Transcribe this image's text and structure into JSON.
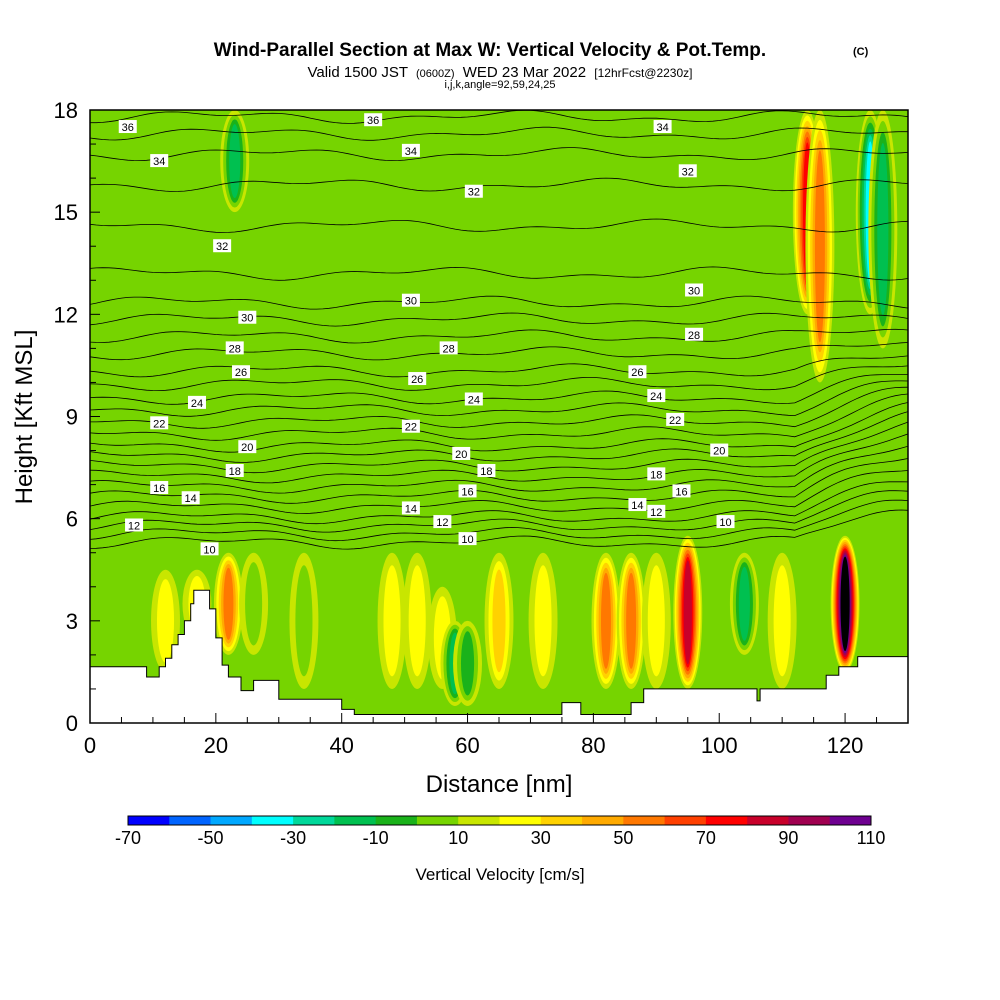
{
  "chart_data": {
    "type": "heatmap",
    "title": "Wind-Parallel Section at Max W: Vertical Velocity & Pot.Temp.",
    "title_mark": "(C)",
    "subtitle_parts": {
      "valid": "Valid 1500 JST",
      "utc": "(0600Z)",
      "date": "WED 23 Mar 2022",
      "fcst": "[12hrFcst@2230z]"
    },
    "subtitle2": "i,j,k,angle=92,59,24,25",
    "xlabel": "Distance [nm]",
    "ylabel": "Height [Kft MSL]",
    "xlim": [
      0,
      130
    ],
    "ylim": [
      0,
      18
    ],
    "xticks": [
      "0",
      "20",
      "40",
      "60",
      "80",
      "100",
      "120"
    ],
    "yticks": [
      "0",
      "3",
      "6",
      "9",
      "12",
      "15",
      "18"
    ],
    "colorbar": {
      "label": "Vertical Velocity [cm/s]",
      "tick_labels": [
        "-70",
        "-50",
        "-30",
        "-10",
        "10",
        "30",
        "50",
        "70",
        "90",
        "110"
      ],
      "colors": [
        "#0000ff",
        "#0064ff",
        "#00a8ff",
        "#00ffff",
        "#00d89a",
        "#00c050",
        "#1ab21a",
        "#76d400",
        "#c8e600",
        "#ffff00",
        "#ffd200",
        "#ffaa00",
        "#ff7800",
        "#ff4000",
        "#ff0000",
        "#c8002a",
        "#a00050",
        "#6e0090"
      ]
    },
    "velocity_columns": [
      {
        "x": 12,
        "h0": 1.5,
        "h1": 4.5,
        "w": 11
      },
      {
        "x": 17,
        "h0": 2.5,
        "h1": 4.5,
        "w": 11
      },
      {
        "x": 22,
        "h0": 2,
        "h1": 5,
        "w": 43
      },
      {
        "x": 26,
        "h0": 2,
        "h1": 5,
        "w": -6
      },
      {
        "x": 34,
        "h0": 1,
        "h1": 5,
        "w": -10
      },
      {
        "x": 48,
        "h0": 1,
        "h1": 5,
        "w": 9
      },
      {
        "x": 52,
        "h0": 1,
        "h1": 5,
        "w": 12
      },
      {
        "x": 56,
        "h0": 1,
        "h1": 4,
        "w": 16
      },
      {
        "x": 58,
        "h0": 0.5,
        "h1": 3,
        "w": -25
      },
      {
        "x": 60,
        "h0": 0.5,
        "h1": 3,
        "w": -18
      },
      {
        "x": 65,
        "h0": 1,
        "h1": 5,
        "w": 20
      },
      {
        "x": 72,
        "h0": 1,
        "h1": 5,
        "w": 18
      },
      {
        "x": 82,
        "h0": 1,
        "h1": 5,
        "w": 48
      },
      {
        "x": 86,
        "h0": 1,
        "h1": 5,
        "w": 46
      },
      {
        "x": 90,
        "h0": 1,
        "h1": 5,
        "w": 18
      },
      {
        "x": 95,
        "h0": 1,
        "h1": 5.5,
        "w": 78
      },
      {
        "x": 104,
        "h0": 2,
        "h1": 5,
        "w": -25
      },
      {
        "x": 110,
        "h0": 1,
        "h1": 5,
        "w": 18
      },
      {
        "x": 120,
        "h0": 1.5,
        "h1": 5.5,
        "w": 110
      },
      {
        "x": 23,
        "h0": 15,
        "h1": 18,
        "w": -22
      },
      {
        "x": 114,
        "h0": 12,
        "h1": 18,
        "w": 60
      },
      {
        "x": 116,
        "h0": 10,
        "h1": 18,
        "w": 40
      },
      {
        "x": 124,
        "h0": 12,
        "h1": 18,
        "w": -45
      },
      {
        "x": 126,
        "h0": 11,
        "h1": 18,
        "w": -28
      }
    ],
    "terrain": [
      [
        0,
        1.65
      ],
      [
        9,
        1.65
      ],
      [
        9,
        1.35
      ],
      [
        11,
        1.35
      ],
      [
        11,
        1.65
      ],
      [
        12,
        1.65
      ],
      [
        12,
        1.9
      ],
      [
        13,
        1.9
      ],
      [
        13,
        2.3
      ],
      [
        14,
        2.3
      ],
      [
        14,
        2.6
      ],
      [
        15,
        2.6
      ],
      [
        15,
        3.0
      ],
      [
        16,
        3.0
      ],
      [
        16,
        3.5
      ],
      [
        16.5,
        3.5
      ],
      [
        16.5,
        3.9
      ],
      [
        19,
        3.9
      ],
      [
        19,
        3.35
      ],
      [
        20,
        3.35
      ],
      [
        20,
        2.5
      ],
      [
        21,
        2.5
      ],
      [
        21,
        1.7
      ],
      [
        22,
        1.7
      ],
      [
        22,
        1.35
      ],
      [
        24,
        1.35
      ],
      [
        24,
        0.95
      ],
      [
        26,
        0.95
      ],
      [
        26,
        1.25
      ],
      [
        30,
        1.25
      ],
      [
        30,
        0.7
      ],
      [
        40,
        0.7
      ],
      [
        40,
        0.4
      ],
      [
        42,
        0.4
      ],
      [
        42,
        0.25
      ],
      [
        75,
        0.25
      ],
      [
        75,
        0.6
      ],
      [
        78,
        0.6
      ],
      [
        78,
        0.25
      ],
      [
        86,
        0.25
      ],
      [
        86,
        0.6
      ],
      [
        88,
        0.6
      ],
      [
        88,
        1.0
      ],
      [
        106,
        1.0
      ],
      [
        106,
        0.65
      ],
      [
        106.5,
        0.65
      ],
      [
        106.5,
        1.0
      ],
      [
        117,
        1.0
      ],
      [
        117,
        1.4
      ],
      [
        119,
        1.4
      ],
      [
        119,
        1.65
      ],
      [
        122,
        1.65
      ],
      [
        122,
        1.95
      ],
      [
        130,
        1.95
      ],
      [
        130,
        0
      ],
      [
        0,
        0
      ]
    ],
    "theta_isentropes": [
      {
        "theta": 10,
        "h": 5.3
      },
      {
        "theta": 11,
        "h": 5.55
      },
      {
        "theta": 12,
        "h": 5.8
      },
      {
        "theta": 13,
        "h": 6.05
      },
      {
        "theta": 14,
        "h": 6.35
      },
      {
        "theta": 15,
        "h": 6.65
      },
      {
        "theta": 16,
        "h": 6.95
      },
      {
        "theta": 17,
        "h": 7.25
      },
      {
        "theta": 18,
        "h": 7.55
      },
      {
        "theta": 19,
        "h": 7.85
      },
      {
        "theta": 20,
        "h": 8.15
      },
      {
        "theta": 21,
        "h": 8.5
      },
      {
        "theta": 22,
        "h": 8.85
      },
      {
        "theta": 23,
        "h": 9.2
      },
      {
        "theta": 24,
        "h": 9.55
      },
      {
        "theta": 25,
        "h": 9.95
      },
      {
        "theta": 26,
        "h": 10.35
      },
      {
        "theta": 27,
        "h": 10.85
      },
      {
        "theta": 28,
        "h": 11.35
      },
      {
        "theta": 29,
        "h": 11.85
      },
      {
        "theta": 30,
        "h": 12.35
      },
      {
        "theta": 31,
        "h": 13.2
      },
      {
        "theta": 32,
        "h": 14.6
      },
      {
        "theta": 33,
        "h": 15.8
      },
      {
        "theta": 34,
        "h": 16.7
      },
      {
        "theta": 35,
        "h": 17.3
      },
      {
        "theta": 36,
        "h": 17.8
      }
    ],
    "contour_labels": [
      {
        "text": "36",
        "x": 6,
        "h": 17.5
      },
      {
        "text": "36",
        "x": 45,
        "h": 17.7
      },
      {
        "text": "34",
        "x": 11,
        "h": 16.5
      },
      {
        "text": "34",
        "x": 51,
        "h": 16.8
      },
      {
        "text": "34",
        "x": 91,
        "h": 17.5
      },
      {
        "text": "32",
        "x": 61,
        "h": 15.6
      },
      {
        "text": "32",
        "x": 95,
        "h": 16.2
      },
      {
        "text": "32",
        "x": 21,
        "h": 14.0
      },
      {
        "text": "30",
        "x": 51,
        "h": 12.4
      },
      {
        "text": "30",
        "x": 96,
        "h": 12.7
      },
      {
        "text": "30",
        "x": 25,
        "h": 11.9
      },
      {
        "text": "28",
        "x": 23,
        "h": 11.0
      },
      {
        "text": "28",
        "x": 57,
        "h": 11.0
      },
      {
        "text": "28",
        "x": 96,
        "h": 11.4
      },
      {
        "text": "26",
        "x": 24,
        "h": 10.3
      },
      {
        "text": "26",
        "x": 52,
        "h": 10.1
      },
      {
        "text": "26",
        "x": 87,
        "h": 10.3
      },
      {
        "text": "24",
        "x": 17,
        "h": 9.4
      },
      {
        "text": "24",
        "x": 61,
        "h": 9.5
      },
      {
        "text": "24",
        "x": 90,
        "h": 9.6
      },
      {
        "text": "22",
        "x": 11,
        "h": 8.8
      },
      {
        "text": "22",
        "x": 51,
        "h": 8.7
      },
      {
        "text": "22",
        "x": 93,
        "h": 8.9
      },
      {
        "text": "20",
        "x": 25,
        "h": 8.1
      },
      {
        "text": "20",
        "x": 59,
        "h": 7.9
      },
      {
        "text": "20",
        "x": 100,
        "h": 8.0
      },
      {
        "text": "18",
        "x": 23,
        "h": 7.4
      },
      {
        "text": "18",
        "x": 63,
        "h": 7.4
      },
      {
        "text": "18",
        "x": 90,
        "h": 7.3
      },
      {
        "text": "16",
        "x": 11,
        "h": 6.9
      },
      {
        "text": "16",
        "x": 60,
        "h": 6.8
      },
      {
        "text": "16",
        "x": 94,
        "h": 6.8
      },
      {
        "text": "14",
        "x": 16,
        "h": 6.6
      },
      {
        "text": "14",
        "x": 51,
        "h": 6.3
      },
      {
        "text": "14",
        "x": 87,
        "h": 6.4
      },
      {
        "text": "12",
        "x": 7,
        "h": 5.8
      },
      {
        "text": "12",
        "x": 56,
        "h": 5.9
      },
      {
        "text": "12",
        "x": 90,
        "h": 6.2
      },
      {
        "text": "10",
        "x": 19,
        "h": 5.1
      },
      {
        "text": "10",
        "x": 60,
        "h": 5.4
      },
      {
        "text": "10",
        "x": 101,
        "h": 5.9
      }
    ]
  }
}
